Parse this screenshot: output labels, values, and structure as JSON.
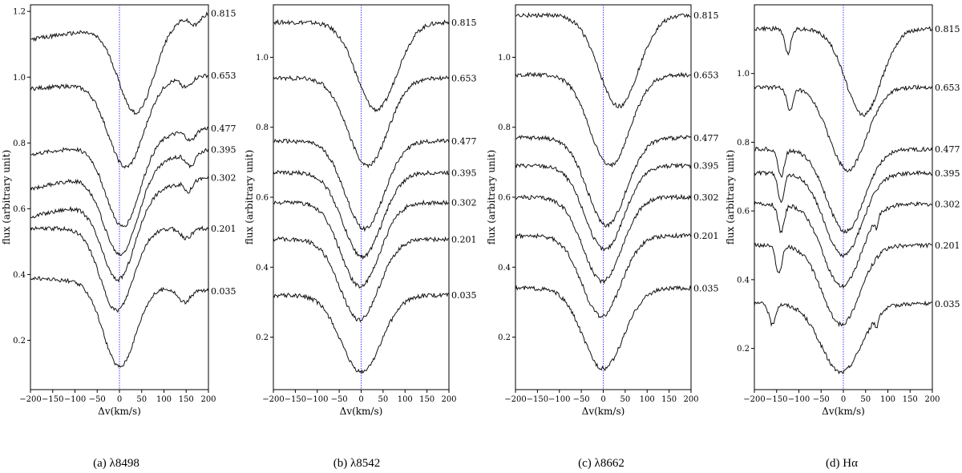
{
  "chart_data": [
    {
      "type": "line",
      "caption": "(a) λ8498",
      "xlabel": "Δv(km/s)",
      "ylabel": "flux (arbitrary unit)",
      "xlim": [
        -200,
        200
      ],
      "ylim": [
        0.05,
        1.22
      ],
      "xticks": [
        -200,
        -150,
        -100,
        -50,
        0,
        50,
        100,
        150,
        200
      ],
      "yticks": [
        0.2,
        0.4,
        0.6,
        0.8,
        1.0,
        1.2
      ],
      "grid": false,
      "zero_line": 0,
      "series": [
        {
          "name": "0.815",
          "continuum": 1.155,
          "line_center": 38,
          "depth": 0.27,
          "width": 40,
          "slope": 0.0002,
          "extra": [
            [
              170,
              0.03,
              12
            ]
          ]
        },
        {
          "name": "0.653",
          "continuum": 0.985,
          "line_center": 15,
          "depth": 0.26,
          "width": 40,
          "slope": 0.0001,
          "extra": [
            [
              150,
              0.03,
              12
            ]
          ]
        },
        {
          "name": "0.477",
          "continuum": 0.805,
          "line_center": 8,
          "depth": 0.26,
          "width": 38,
          "slope": 0.0002,
          "extra": [
            [
              160,
              0.03,
              10
            ]
          ]
        },
        {
          "name": "0.395",
          "continuum": 0.72,
          "line_center": 3,
          "depth": 0.26,
          "width": 38,
          "slope": 0.0003,
          "extra": [
            [
              160,
              0.04,
              10
            ]
          ]
        },
        {
          "name": "0.302",
          "continuum": 0.635,
          "line_center": -2,
          "depth": 0.25,
          "width": 37,
          "slope": 0.0003,
          "extra": [
            [
              155,
              0.03,
              8
            ]
          ]
        },
        {
          "name": "0.201",
          "continuum": 0.54,
          "line_center": -6,
          "depth": 0.25,
          "width": 37,
          "slope": 0.0,
          "extra": [
            [
              150,
              0.03,
              12
            ]
          ]
        },
        {
          "name": "0.035",
          "continuum": 0.37,
          "line_center": 0,
          "depth": 0.25,
          "width": 36,
          "slope": -0.0001,
          "extra": [
            [
              145,
              0.04,
              14
            ]
          ]
        }
      ]
    },
    {
      "type": "line",
      "caption": "(b) λ8542",
      "xlabel": "Δv(km/s)",
      "ylabel": "flux (arbitrary unit)",
      "xlim": [
        -200,
        200
      ],
      "ylim": [
        0.05,
        1.15
      ],
      "xticks": [
        -200,
        -150,
        -100,
        -50,
        0,
        50,
        100,
        150,
        200
      ],
      "yticks": [
        0.2,
        0.4,
        0.6,
        0.8,
        1.0
      ],
      "grid": false,
      "zero_line": 0,
      "series": [
        {
          "name": "0.815",
          "continuum": 1.1,
          "line_center": 35,
          "depth": 0.25,
          "width": 45,
          "slope": 0.0,
          "extra": []
        },
        {
          "name": "0.653",
          "continuum": 0.94,
          "line_center": 15,
          "depth": 0.25,
          "width": 45,
          "slope": 0.0,
          "extra": []
        },
        {
          "name": "0.477",
          "continuum": 0.76,
          "line_center": 8,
          "depth": 0.25,
          "width": 44,
          "slope": 0.0,
          "extra": []
        },
        {
          "name": "0.395",
          "continuum": 0.67,
          "line_center": 3,
          "depth": 0.24,
          "width": 44,
          "slope": 0.0,
          "extra": []
        },
        {
          "name": "0.302",
          "continuum": 0.585,
          "line_center": -2,
          "depth": 0.24,
          "width": 44,
          "slope": 0.0,
          "extra": []
        },
        {
          "name": "0.201",
          "continuum": 0.48,
          "line_center": -4,
          "depth": 0.23,
          "width": 44,
          "slope": 0.0,
          "extra": []
        },
        {
          "name": "0.035",
          "continuum": 0.32,
          "line_center": 0,
          "depth": 0.22,
          "width": 46,
          "slope": 0.0,
          "extra": []
        }
      ]
    },
    {
      "type": "line",
      "caption": "(c) λ8662",
      "xlabel": "Δv(km/s)",
      "ylabel": "flux (arbitrary unit)",
      "xlim": [
        -200,
        200
      ],
      "ylim": [
        0.05,
        1.15
      ],
      "xticks": [
        -200,
        -150,
        -100,
        -50,
        0,
        50,
        100,
        150,
        200
      ],
      "yticks": [
        0.2,
        0.4,
        0.6,
        0.8,
        1.0
      ],
      "grid": false,
      "zero_line": 0,
      "series": [
        {
          "name": "0.815",
          "continuum": 1.12,
          "line_center": 35,
          "depth": 0.26,
          "width": 45,
          "slope": 0.0,
          "extra": []
        },
        {
          "name": "0.653",
          "continuum": 0.95,
          "line_center": 15,
          "depth": 0.26,
          "width": 45,
          "slope": 0.0,
          "extra": []
        },
        {
          "name": "0.477",
          "continuum": 0.77,
          "line_center": 8,
          "depth": 0.25,
          "width": 44,
          "slope": 0.0,
          "extra": []
        },
        {
          "name": "0.395",
          "continuum": 0.69,
          "line_center": 3,
          "depth": 0.24,
          "width": 44,
          "slope": 0.0,
          "extra": []
        },
        {
          "name": "0.302",
          "continuum": 0.6,
          "line_center": -2,
          "depth": 0.24,
          "width": 44,
          "slope": 0.0,
          "extra": []
        },
        {
          "name": "0.201",
          "continuum": 0.49,
          "line_center": -4,
          "depth": 0.23,
          "width": 44,
          "slope": 0.0,
          "extra": []
        },
        {
          "name": "0.035",
          "continuum": 0.34,
          "line_center": 0,
          "depth": 0.23,
          "width": 46,
          "slope": 0.0,
          "extra": []
        }
      ]
    },
    {
      "type": "line",
      "caption": "(d) Hα",
      "xlabel": "Δv(km/s)",
      "ylabel": "flux (arbitrary unit)",
      "xlim": [
        -200,
        200
      ],
      "ylim": [
        0.08,
        1.2
      ],
      "xticks": [
        -200,
        -150,
        -100,
        -50,
        0,
        50,
        100,
        150,
        200
      ],
      "yticks": [
        0.2,
        0.4,
        0.6,
        0.8,
        1.0
      ],
      "grid": false,
      "zero_line": 0,
      "series": [
        {
          "name": "0.815",
          "continuum": 1.13,
          "line_center": 45,
          "depth": 0.25,
          "width": 40,
          "slope": 0.0,
          "extra": [
            [
              -125,
              0.07,
              7
            ]
          ]
        },
        {
          "name": "0.653",
          "continuum": 0.96,
          "line_center": 10,
          "depth": 0.24,
          "width": 42,
          "slope": 0.0,
          "extra": [
            [
              -120,
              0.07,
              7
            ]
          ]
        },
        {
          "name": "0.477",
          "continuum": 0.78,
          "line_center": 5,
          "depth": 0.24,
          "width": 42,
          "slope": 0.0,
          "extra": [
            [
              -140,
              0.08,
              7
            ]
          ]
        },
        {
          "name": "0.395",
          "continuum": 0.71,
          "line_center": 0,
          "depth": 0.24,
          "width": 42,
          "slope": 0.0,
          "extra": [
            [
              -140,
              0.08,
              7
            ]
          ]
        },
        {
          "name": "0.302",
          "continuum": 0.62,
          "line_center": -3,
          "depth": 0.24,
          "width": 42,
          "slope": 0.0,
          "extra": [
            [
              -140,
              0.08,
              7
            ],
            [
              75,
              0.03,
              3
            ]
          ]
        },
        {
          "name": "0.201",
          "continuum": 0.5,
          "line_center": -5,
          "depth": 0.23,
          "width": 42,
          "slope": 0.0,
          "extra": [
            [
              -145,
              0.08,
              7
            ]
          ]
        },
        {
          "name": "0.035",
          "continuum": 0.33,
          "line_center": -5,
          "depth": 0.2,
          "width": 45,
          "slope": 0.0,
          "extra": [
            [
              -160,
              0.06,
              7
            ],
            [
              75,
              0.03,
              3
            ]
          ]
        }
      ]
    }
  ]
}
